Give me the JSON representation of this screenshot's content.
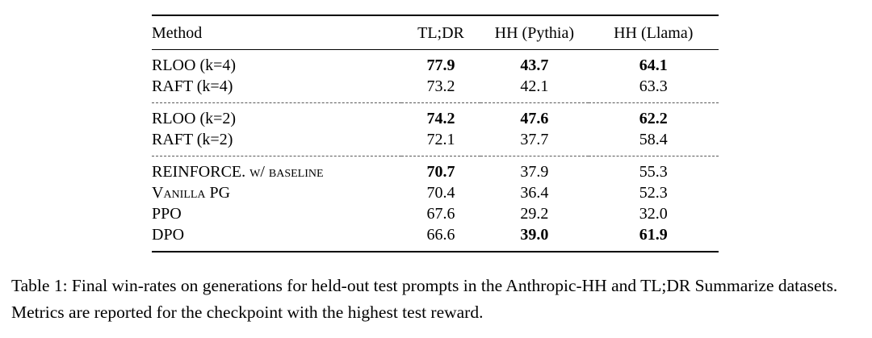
{
  "table": {
    "headers": [
      "Method",
      "TL;DR",
      "HH (Pythia)",
      "HH (Llama)"
    ],
    "rows": [
      {
        "method": "RLOO (k=4)",
        "tldr": "77.9",
        "hh_pythia": "43.7",
        "hh_llama": "64.1",
        "smallcaps": false,
        "bold": {
          "tldr": true,
          "hh_pythia": true,
          "hh_llama": true
        }
      },
      {
        "method": "RAFT (k=4)",
        "tldr": "73.2",
        "hh_pythia": "42.1",
        "hh_llama": "63.3",
        "smallcaps": false,
        "bold": {
          "tldr": false,
          "hh_pythia": false,
          "hh_llama": false
        }
      },
      {
        "method": "RLOO (k=2)",
        "tldr": "74.2",
        "hh_pythia": "47.6",
        "hh_llama": "62.2",
        "smallcaps": false,
        "bold": {
          "tldr": true,
          "hh_pythia": true,
          "hh_llama": true
        }
      },
      {
        "method": "RAFT (k=2)",
        "tldr": "72.1",
        "hh_pythia": "37.7",
        "hh_llama": "58.4",
        "smallcaps": false,
        "bold": {
          "tldr": false,
          "hh_pythia": false,
          "hh_llama": false
        }
      },
      {
        "method": "REINFORCE. w/ baseline",
        "tldr": "70.7",
        "hh_pythia": "37.9",
        "hh_llama": "55.3",
        "smallcaps": true,
        "bold": {
          "tldr": true,
          "hh_pythia": false,
          "hh_llama": false
        }
      },
      {
        "method": "Vanilla PG",
        "tldr": "70.4",
        "hh_pythia": "36.4",
        "hh_llama": "52.3",
        "smallcaps": true,
        "bold": {
          "tldr": false,
          "hh_pythia": false,
          "hh_llama": false
        }
      },
      {
        "method": "PPO",
        "tldr": "67.6",
        "hh_pythia": "29.2",
        "hh_llama": "32.0",
        "smallcaps": false,
        "bold": {
          "tldr": false,
          "hh_pythia": false,
          "hh_llama": false
        }
      },
      {
        "method": "DPO",
        "tldr": "66.6",
        "hh_pythia": "39.0",
        "hh_llama": "61.9",
        "smallcaps": false,
        "bold": {
          "tldr": false,
          "hh_pythia": true,
          "hh_llama": true
        }
      }
    ]
  },
  "caption": "Table 1: Final win-rates on generations for held-out test prompts in the Anthropic-HH and TL;DR Summarize datasets. Metrics are reported for the checkpoint with the highest test reward."
}
